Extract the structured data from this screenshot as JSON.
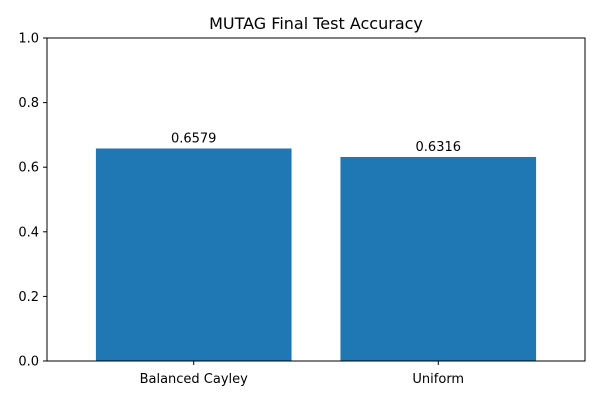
{
  "chart_data": {
    "type": "bar",
    "title": "MUTAG Final Test Accuracy",
    "xlabel": "",
    "ylabel": "",
    "categories": [
      "Balanced Cayley",
      "Uniform"
    ],
    "values": [
      0.6579,
      0.6316
    ],
    "data_labels": [
      "0.6579",
      "0.6316"
    ],
    "ylim": [
      0,
      1.0
    ],
    "y_ticks": [
      0.0,
      0.2,
      0.4,
      0.6,
      0.8,
      1.0
    ],
    "y_tick_labels": [
      "0.0",
      "0.2",
      "0.4",
      "0.6",
      "0.8",
      "1.0"
    ],
    "bar_color": "#1f77b4",
    "grid": false,
    "legend": "none"
  }
}
